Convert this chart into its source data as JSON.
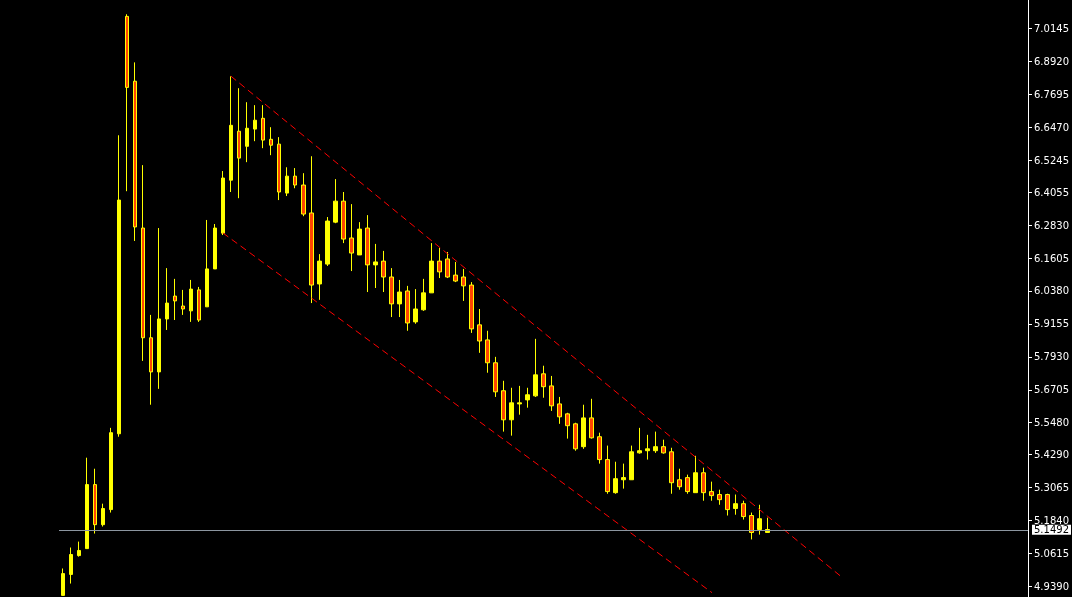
{
  "chart_data": {
    "type": "candlestick",
    "categories": [
      null,
      null,
      null,
      null,
      null,
      null,
      null,
      null,
      null,
      null,
      null,
      null,
      null,
      null,
      null,
      null,
      null,
      null,
      null,
      null,
      null,
      null,
      null,
      null,
      null,
      null,
      null,
      null,
      null,
      null,
      null,
      null,
      null,
      null,
      null,
      null,
      null,
      null,
      null,
      null,
      null,
      null,
      null,
      null,
      null,
      null,
      null,
      null,
      null,
      null,
      null,
      null,
      null,
      null,
      null,
      null,
      null,
      null,
      null,
      null,
      null,
      null,
      null,
      null,
      null,
      null,
      null,
      null,
      null,
      null,
      null,
      null,
      null,
      null,
      null,
      null,
      null,
      null,
      null,
      null,
      null,
      null,
      null,
      null,
      null,
      null,
      null,
      null,
      null,
      null,
      null,
      null,
      null,
      null,
      null,
      null,
      null,
      null,
      null,
      null,
      null,
      null,
      null,
      null,
      null,
      null,
      null,
      null,
      null,
      null,
      null,
      null,
      null,
      null,
      null,
      null,
      null,
      null,
      null,
      null,
      null
    ],
    "color": "#ffff00",
    "ohlc": [
      [
        4.906,
        5.006,
        4.906,
        4.987
      ],
      [
        4.984,
        5.084,
        4.95,
        5.058
      ],
      [
        5.054,
        5.106,
        5.05,
        5.073
      ],
      [
        5.08,
        5.418,
        5.08,
        5.318
      ],
      [
        5.318,
        5.377,
        5.136,
        5.169
      ],
      [
        5.169,
        5.247,
        5.162,
        5.229
      ],
      [
        5.225,
        5.529,
        5.214,
        5.511
      ],
      [
        5.507,
        6.617,
        5.496,
        6.376
      ],
      [
        7.059,
        7.067,
        6.409,
        6.795
      ],
      [
        6.818,
        6.888,
        6.224,
        6.276
      ],
      [
        6.272,
        6.506,
        5.778,
        5.864
      ],
      [
        5.864,
        5.949,
        5.615,
        5.737
      ],
      [
        5.737,
        6.272,
        5.674,
        5.934
      ],
      [
        5.934,
        6.123,
        5.893,
        5.993
      ],
      [
        6.019,
        6.083,
        5.93,
        6.001
      ],
      [
        5.982,
        6.042,
        5.949,
        5.971
      ],
      [
        5.964,
        6.079,
        5.923,
        6.045
      ],
      [
        6.042,
        6.053,
        5.923,
        5.93
      ],
      [
        5.979,
        6.302,
        5.979,
        6.12
      ],
      [
        6.12,
        6.287,
        6.12,
        6.272
      ],
      [
        6.253,
        6.484,
        6.246,
        6.458
      ],
      [
        6.45,
        6.836,
        6.406,
        6.654
      ],
      [
        6.632,
        6.792,
        6.383,
        6.532
      ],
      [
        6.576,
        6.74,
        6.517,
        6.643
      ],
      [
        6.64,
        6.729,
        6.595,
        6.673
      ],
      [
        6.68,
        6.729,
        6.569,
        6.599
      ],
      [
        6.602,
        6.647,
        6.543,
        6.58
      ],
      [
        6.584,
        6.61,
        6.376,
        6.406
      ],
      [
        6.402,
        6.498,
        6.391,
        6.465
      ],
      [
        6.465,
        6.495,
        6.42,
        6.432
      ],
      [
        6.432,
        6.476,
        6.316,
        6.324
      ],
      [
        6.328,
        6.539,
        5.993,
        6.06
      ],
      [
        6.064,
        6.175,
        6.005,
        6.149
      ],
      [
        6.138,
        6.313,
        6.131,
        6.298
      ],
      [
        6.294,
        6.454,
        6.29,
        6.372
      ],
      [
        6.372,
        6.406,
        6.216,
        6.231
      ],
      [
        6.235,
        6.361,
        6.112,
        6.179
      ],
      [
        6.172,
        6.294,
        6.172,
        6.268
      ],
      [
        6.272,
        6.32,
        6.034,
        6.135
      ],
      [
        6.135,
        6.213,
        6.049,
        6.146
      ],
      [
        6.149,
        6.187,
        6.034,
        6.09
      ],
      [
        6.09,
        6.123,
        5.941,
        5.99
      ],
      [
        5.99,
        6.079,
        5.941,
        6.034
      ],
      [
        6.038,
        6.057,
        5.89,
        5.919
      ],
      [
        5.923,
        6.045,
        5.916,
        5.971
      ],
      [
        5.968,
        6.083,
        5.964,
        6.031
      ],
      [
        6.031,
        6.216,
        6.031,
        6.149
      ],
      [
        6.149,
        6.198,
        6.086,
        6.109
      ],
      [
        6.157,
        6.183,
        6.086,
        6.09
      ],
      [
        6.097,
        6.146,
        6.071,
        6.075
      ],
      [
        6.09,
        6.12,
        6.001,
        6.057
      ],
      [
        6.06,
        6.071,
        5.882,
        5.897
      ],
      [
        5.912,
        5.971,
        5.808,
        5.852
      ],
      [
        5.856,
        5.89,
        5.734,
        5.771
      ],
      [
        5.771,
        5.793,
        5.644,
        5.663
      ],
      [
        5.667,
        5.704,
        5.515,
        5.559
      ],
      [
        5.559,
        5.678,
        5.5,
        5.622
      ],
      [
        5.618,
        5.685,
        5.578,
        5.622
      ],
      [
        5.633,
        5.678,
        5.604,
        5.652
      ],
      [
        5.648,
        5.86,
        5.644,
        5.726
      ],
      [
        5.73,
        5.76,
        5.641,
        5.682
      ],
      [
        5.685,
        5.722,
        5.592,
        5.611
      ],
      [
        5.618,
        5.644,
        5.544,
        5.57
      ],
      [
        5.581,
        5.585,
        5.489,
        5.537
      ],
      [
        5.544,
        5.548,
        5.444,
        5.451
      ],
      [
        5.459,
        5.615,
        5.451,
        5.566
      ],
      [
        5.566,
        5.637,
        5.489,
        5.492
      ],
      [
        5.496,
        5.511,
        5.396,
        5.411
      ],
      [
        5.411,
        5.463,
        5.284,
        5.292
      ],
      [
        5.288,
        5.403,
        5.284,
        5.34
      ],
      [
        5.336,
        5.396,
        5.303,
        5.344
      ],
      [
        5.336,
        5.463,
        5.336,
        5.44
      ],
      [
        5.436,
        5.529,
        5.433,
        5.444
      ],
      [
        5.444,
        5.503,
        5.411,
        5.451
      ],
      [
        5.444,
        5.515,
        5.436,
        5.459
      ],
      [
        5.459,
        5.485,
        5.433,
        5.436
      ],
      [
        5.44,
        5.455,
        5.284,
        5.325
      ],
      [
        5.336,
        5.377,
        5.299,
        5.31
      ],
      [
        5.344,
        5.355,
        5.284,
        5.292
      ],
      [
        5.288,
        5.425,
        5.288,
        5.362
      ],
      [
        5.362,
        5.381,
        5.258,
        5.288
      ],
      [
        5.292,
        5.329,
        5.258,
        5.277
      ],
      [
        5.281,
        5.299,
        5.243,
        5.262
      ],
      [
        5.281,
        5.284,
        5.203,
        5.225
      ],
      [
        5.229,
        5.281,
        5.206,
        5.247
      ],
      [
        5.247,
        5.258,
        5.188,
        5.199
      ],
      [
        5.203,
        5.214,
        5.114,
        5.14
      ],
      [
        5.151,
        5.243,
        5.132,
        5.191
      ],
      [
        5.14,
        5.195,
        5.14,
        5.151
      ],
      null,
      null,
      null,
      null,
      null,
      null,
      null,
      null,
      null,
      null,
      null,
      null,
      null,
      null,
      null,
      null,
      null,
      null,
      null,
      null,
      null,
      null,
      null,
      null,
      null,
      null,
      null,
      null,
      null,
      null,
      null,
      null
    ],
    "colors": [
      "#ffff00",
      "#ffff00",
      "#ffff00",
      "#ffff00",
      "#ff4500",
      "#ffff00",
      "#ffff00",
      "#ffff00",
      "#ff4500",
      "#ff4500",
      "#ff4500",
      "#ff4500",
      "#ffff00",
      "#ffff00",
      "#ff4500",
      "#ff4500",
      "#ffff00",
      "#ff4500",
      "#ffff00",
      "#ffff00",
      "#ffff00",
      "#ffff00",
      "#ff4500",
      "#ffff00",
      "#ffff00",
      "#ff4500",
      "#ff4500",
      "#ff4500",
      "#ffff00",
      "#ff4500",
      "#ff4500",
      "#ff4500",
      "#ffff00",
      "#ffff00",
      "#ffff00",
      "#ff4500",
      "#ff4500",
      "#ffff00",
      "#ff4500",
      "#ffff00",
      "#ff4500",
      "#ff4500",
      "#ffff00",
      "#ff4500",
      "#ffff00",
      "#ffff00",
      "#ffff00",
      "#ff4500",
      "#ff4500",
      "#ff4500",
      "#ff4500",
      "#ff4500",
      "#ff4500",
      "#ff4500",
      "#ff4500",
      "#ff4500",
      "#ffff00",
      "#ffff00",
      "#ffff00",
      "#ffff00",
      "#ff4500",
      "#ff4500",
      "#ff4500",
      "#ff4500",
      "#ff4500",
      "#ffff00",
      "#ff4500",
      "#ff4500",
      "#ff4500",
      "#ffff00",
      "#ffff00",
      "#ffff00",
      "#ffff00",
      "#ffff00",
      "#ffff00",
      "#ff4500",
      "#ff4500",
      "#ff4500",
      "#ff4500",
      "#ffff00",
      "#ff4500",
      "#ff4500",
      "#ff4500",
      "#ff4500",
      "#ffff00",
      "#ff4500",
      "#ff4500",
      "#ffff00",
      "#ffff00",
      null,
      null,
      null,
      null,
      null,
      null,
      null,
      null,
      null,
      null,
      null,
      null,
      null,
      null,
      null,
      null,
      null,
      null,
      null,
      null,
      null,
      null,
      null,
      null,
      null,
      null,
      null,
      null,
      null,
      null,
      null,
      null
    ],
    "series": [
      {
        "type": "line",
        "color": "#ff0000",
        "line_style": "dashed",
        "values": [
          null,
          null,
          null,
          null,
          null,
          null,
          null,
          null,
          null,
          null,
          null,
          null,
          null,
          null,
          null,
          null,
          null,
          null,
          null,
          null,
          null,
          6.836,
          null,
          null,
          null,
          null,
          null,
          null,
          null,
          null,
          null,
          null,
          null,
          null,
          null,
          null,
          null,
          null,
          null,
          null,
          null,
          null,
          null,
          null,
          null,
          null,
          null,
          null,
          null,
          null,
          null,
          null,
          null,
          null,
          null,
          null,
          null,
          null,
          null,
          null,
          null,
          null,
          null,
          null,
          null,
          null,
          null,
          null,
          null,
          null,
          null,
          null,
          null,
          null,
          null,
          null,
          null,
          null,
          null,
          null,
          null,
          null,
          null,
          null,
          null,
          null,
          null,
          null,
          null,
          null,
          null,
          null,
          null,
          null,
          null,
          null,
          null,
          4.98,
          null,
          null,
          null,
          null,
          null,
          null,
          null,
          null,
          null,
          null,
          null,
          null,
          null,
          null,
          null,
          null,
          null,
          null,
          null,
          null,
          null,
          null,
          null
        ]
      },
      {
        "type": "line",
        "color": "#ff0000",
        "line_style": "dashed",
        "values": [
          null,
          null,
          null,
          null,
          null,
          null,
          null,
          null,
          null,
          null,
          null,
          null,
          null,
          null,
          null,
          null,
          null,
          null,
          null,
          null,
          6.253,
          null,
          null,
          null,
          null,
          null,
          null,
          null,
          null,
          null,
          null,
          null,
          null,
          null,
          null,
          null,
          null,
          null,
          null,
          null,
          null,
          null,
          null,
          null,
          null,
          null,
          null,
          null,
          null,
          null,
          null,
          null,
          null,
          null,
          null,
          null,
          null,
          null,
          null,
          null,
          null,
          null,
          null,
          null,
          null,
          null,
          null,
          null,
          null,
          null,
          null,
          null,
          null,
          null,
          null,
          null,
          null,
          null,
          null,
          null,
          null,
          4.917,
          null,
          null,
          null,
          null,
          null,
          null,
          null,
          null,
          null,
          null,
          null,
          null,
          null,
          null,
          null,
          null,
          null,
          null,
          null,
          null,
          null,
          null,
          null,
          null,
          null,
          null,
          null,
          null,
          null,
          null,
          null,
          null,
          null,
          null,
          null,
          null,
          null,
          null,
          null
        ]
      }
    ],
    "ylim": [
      4.9,
      7.12
    ],
    "yticks": [
      {
        "value": 4.939,
        "label": "4.9390"
      },
      {
        "value": 5.0615,
        "label": "5.0615"
      },
      {
        "value": 5.184,
        "label": "5.1840"
      },
      5.3065,
      {
        "value": 5.429,
        "label": "5.4290"
      },
      {
        "value": 5.548,
        "label": "5.5480"
      },
      5.6705,
      {
        "value": 5.793,
        "label": "5.7930"
      },
      5.9155,
      {
        "value": 6.038,
        "label": "6.0380"
      },
      6.1605,
      {
        "value": 6.283,
        "label": "6.2830"
      },
      6.4055,
      6.5245,
      {
        "value": 6.647,
        "label": "6.6470"
      },
      6.7695,
      {
        "value": 6.892,
        "label": "6.8920"
      },
      7.0145
    ],
    "ref_lines": [
      {
        "axis": "y",
        "value": 5.1492,
        "label": "5.1492",
        "color": "#8c96a0"
      }
    ],
    "tick_labels": "y",
    "grid": false
  }
}
